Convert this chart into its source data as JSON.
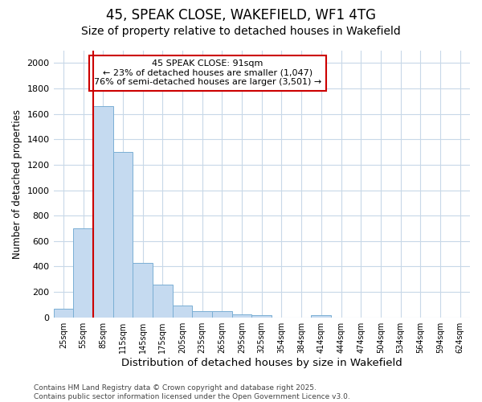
{
  "title": "45, SPEAK CLOSE, WAKEFIELD, WF1 4TG",
  "subtitle": "Size of property relative to detached houses in Wakefield",
  "xlabel": "Distribution of detached houses by size in Wakefield",
  "ylabel": "Number of detached properties",
  "categories": [
    "25sqm",
    "55sqm",
    "85sqm",
    "115sqm",
    "145sqm",
    "175sqm",
    "205sqm",
    "235sqm",
    "265sqm",
    "295sqm",
    "325sqm",
    "354sqm",
    "384sqm",
    "414sqm",
    "444sqm",
    "474sqm",
    "504sqm",
    "534sqm",
    "564sqm",
    "594sqm",
    "624sqm"
  ],
  "values": [
    70,
    700,
    1660,
    1300,
    430,
    255,
    90,
    50,
    50,
    25,
    20,
    0,
    0,
    15,
    0,
    0,
    0,
    0,
    0,
    0,
    0
  ],
  "bar_color": "#c5daf0",
  "bar_edge_color": "#7aafd4",
  "vline_x_index": 2,
  "vline_color": "#cc0000",
  "annotation_text": "45 SPEAK CLOSE: 91sqm\n← 23% of detached houses are smaller (1,047)\n76% of semi-detached houses are larger (3,501) →",
  "annotation_box_color": "#ffffff",
  "annotation_box_edge": "#cc0000",
  "ylim": [
    0,
    2100
  ],
  "yticks": [
    0,
    200,
    400,
    600,
    800,
    1000,
    1200,
    1400,
    1600,
    1800,
    2000
  ],
  "bg_color": "#ffffff",
  "plot_bg_color": "#ffffff",
  "grid_color": "#c8d8e8",
  "footer": "Contains HM Land Registry data © Crown copyright and database right 2025.\nContains public sector information licensed under the Open Government Licence v3.0.",
  "title_fontsize": 12,
  "subtitle_fontsize": 10,
  "xlabel_fontsize": 9.5,
  "ylabel_fontsize": 8.5,
  "footer_fontsize": 6.5
}
